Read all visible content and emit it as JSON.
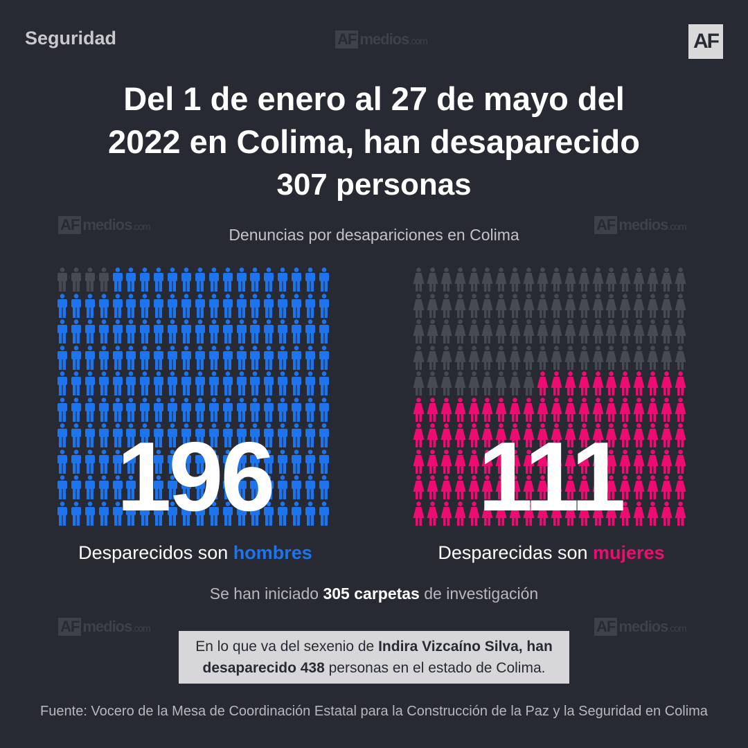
{
  "section": "Seguridad",
  "logo_text": "AF",
  "watermark": {
    "brand": "AF",
    "text": "medios",
    "suffix": ".com"
  },
  "headline": {
    "line1": "Del 1 de enero al 27 de mayo del",
    "line2": "2022 en Colima, han desaparecido",
    "line3": "307 personas"
  },
  "subtitle": "Denuncias por desapariciones en Colima",
  "men": {
    "count": "196",
    "total_icons": 200,
    "caption_prefix": "Desparecidos son",
    "caption_highlight": "hombres",
    "color": "#1d74ec"
  },
  "women": {
    "count": "111",
    "total_icons": 200,
    "caption_prefix": "Desparecidas son",
    "caption_highlight": "mujeres",
    "color": "#ee0b72"
  },
  "inactive_color": "#464a53",
  "carpetas": {
    "prefix": "Se han iniciado",
    "bold": "305 carpetas",
    "suffix": "de investigación"
  },
  "note": {
    "l1_prefix": "En lo que va del sexenio de",
    "l1_bold": "Indira Vizcaíno Silva, han",
    "l2_bold": "desaparecido 438",
    "l2_suffix": "personas en el estado de Colima."
  },
  "source": "Fuente: Vocero de la Mesa de Coordinación Estatal para la Construcción de la Paz y la Seguridad en Colima"
}
